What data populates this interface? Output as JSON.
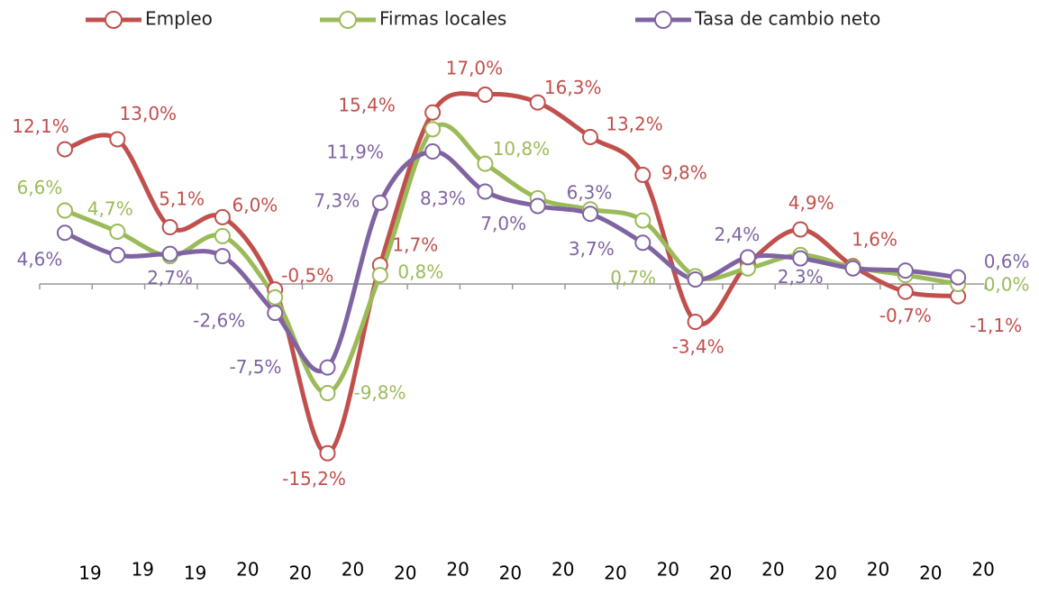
{
  "chart_data": {
    "type": "line",
    "categories": [
      "19",
      "19",
      "19",
      "20",
      "20",
      "20",
      "20",
      "20",
      "20",
      "20",
      "20",
      "20",
      "20",
      "20",
      "20",
      "20",
      "20",
      "20"
    ],
    "ylim": [
      -20,
      20
    ],
    "legend": "top",
    "series": [
      {
        "name": "Empleo",
        "color": "#c0504d",
        "values": [
          12.1,
          13.0,
          5.1,
          6.0,
          -0.5,
          -15.2,
          1.7,
          15.4,
          17.0,
          16.3,
          13.2,
          9.8,
          -3.4,
          1.8,
          4.9,
          1.6,
          -0.7,
          -1.1
        ],
        "value_labels": [
          "12,1%",
          "13,0%",
          "5,1%",
          "6,0%",
          "-0,5%",
          "-15,2%",
          "1,7%",
          "15,4%",
          "17,0%",
          "16,3%",
          "13,2%",
          "9,8%",
          "-3,4%",
          null,
          "4,9%",
          "1,6%",
          "-0,7%",
          "-1,1%"
        ]
      },
      {
        "name": "Firmas locales",
        "color": "#9bbb59",
        "values": [
          6.6,
          4.7,
          2.5,
          4.3,
          -1.2,
          -9.8,
          0.8,
          13.9,
          10.8,
          7.7,
          6.7,
          5.7,
          0.7,
          1.4,
          2.6,
          1.5,
          0.8,
          0.0
        ],
        "value_labels": [
          "6,6%",
          "4,7%",
          null,
          null,
          null,
          "-9,8%",
          "0,8%",
          null,
          "10,8%",
          null,
          null,
          null,
          "0,7%",
          null,
          null,
          null,
          null,
          "0,0%"
        ]
      },
      {
        "name": "Tasa de cambio neto",
        "color": "#8064a2",
        "values": [
          4.6,
          2.6,
          2.7,
          2.5,
          -2.6,
          -7.5,
          7.3,
          11.9,
          8.3,
          7.0,
          6.3,
          3.7,
          0.4,
          2.4,
          2.3,
          1.4,
          1.2,
          0.6
        ],
        "value_labels": [
          "4,6%",
          null,
          "2,7%",
          null,
          "-2,6%",
          "-7,5%",
          "7,3%",
          "11,9%",
          "8,3%",
          "7,0%",
          "6,3%",
          "3,7%",
          null,
          "2,4%",
          "2,3%",
          null,
          null,
          "0,6%"
        ]
      }
    ]
  }
}
